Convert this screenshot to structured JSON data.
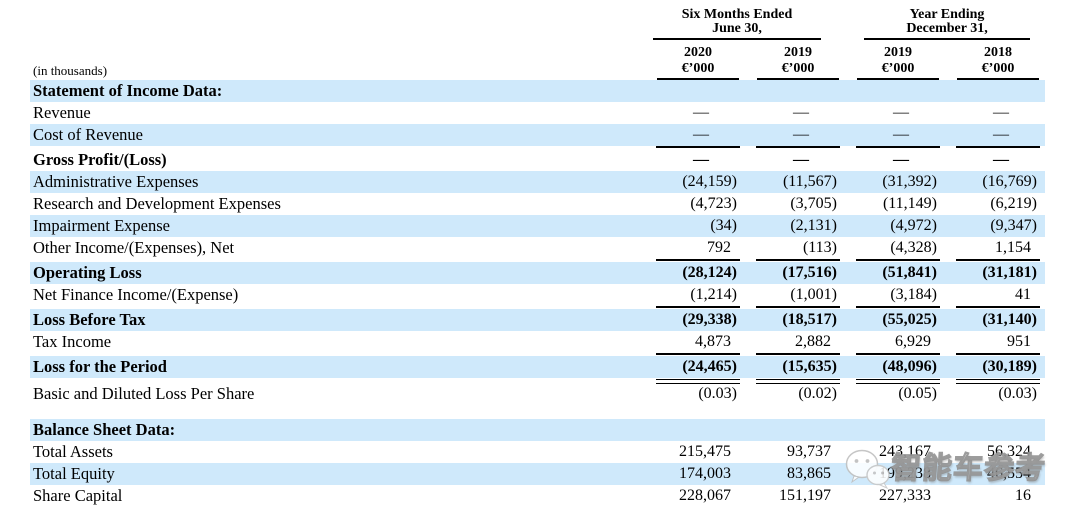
{
  "table": {
    "unit_note": "(in thousands)",
    "col_groups": [
      {
        "title_line1": "Six Months Ended",
        "title_line2": "June 30,",
        "columns": [
          {
            "year": "2020",
            "unit": "€’000"
          },
          {
            "year": "2019",
            "unit": "€’000"
          }
        ]
      },
      {
        "title_line1": "Year Ending",
        "title_line2": "December 31,",
        "columns": [
          {
            "year": "2019",
            "unit": "€’000"
          },
          {
            "year": "2018",
            "unit": "€’000"
          }
        ]
      }
    ],
    "rows": [
      {
        "label": "Statement of Income Data:",
        "values": [
          "",
          "",
          "",
          ""
        ],
        "bold": true,
        "bg": "blue"
      },
      {
        "label": "Revenue",
        "values": [
          "—",
          "—",
          "—",
          "—"
        ],
        "bg": "white"
      },
      {
        "label": "Cost of Revenue",
        "values": [
          "—",
          "—",
          "—",
          "—"
        ],
        "bg": "blue",
        "rule": "single"
      },
      {
        "label": "Gross Profit/(Loss)",
        "values": [
          "—",
          "—",
          "—",
          "—"
        ],
        "bold": true,
        "bg": "white",
        "gap_before": 3
      },
      {
        "label": "Administrative Expenses",
        "values": [
          "(24,159)",
          "(11,567)",
          "(31,392)",
          "(16,769)"
        ],
        "bg": "blue"
      },
      {
        "label": "Research and Development Expenses",
        "values": [
          "(4,723)",
          "(3,705)",
          "(11,149)",
          "(6,219)"
        ],
        "bg": "white"
      },
      {
        "label": "Impairment Expense",
        "values": [
          "(34)",
          "(2,131)",
          "(4,972)",
          "(9,347)"
        ],
        "bg": "blue"
      },
      {
        "label": "Other Income/(Expenses), Net",
        "values": [
          "792",
          "(113)",
          "(4,328)",
          "1,154"
        ],
        "bg": "white",
        "rule": "single"
      },
      {
        "label": "Operating Loss",
        "values": [
          "(28,124)",
          "(17,516)",
          "(51,841)",
          "(31,181)"
        ],
        "bold": true,
        "bg": "blue",
        "gap_before": 3
      },
      {
        "label": "Net Finance Income/(Expense)",
        "values": [
          "(1,214)",
          "(1,001)",
          "(3,184)",
          "41"
        ],
        "bg": "white",
        "rule": "single"
      },
      {
        "label": "Loss Before Tax",
        "values": [
          "(29,338)",
          "(18,517)",
          "(55,025)",
          "(31,140)"
        ],
        "bold": true,
        "bg": "blue",
        "gap_before": 3
      },
      {
        "label": "Tax Income",
        "values": [
          "4,873",
          "2,882",
          "6,929",
          "951"
        ],
        "bg": "white",
        "rule": "single"
      },
      {
        "label": "Loss for the Period",
        "values": [
          "(24,465)",
          "(15,635)",
          "(48,096)",
          "(30,189)"
        ],
        "bold": true,
        "bg": "blue",
        "rule": "double",
        "gap_before": 3
      },
      {
        "label": "Basic and Diluted Loss Per Share",
        "values": [
          "(0.03)",
          "(0.02)",
          "(0.05)",
          "(0.03)"
        ],
        "bg": "white",
        "gap_before": 5
      },
      {
        "label": "Balance Sheet Data:",
        "values": [
          "",
          "",
          "",
          ""
        ],
        "bold": true,
        "bg": "blue",
        "spacer_before": true
      },
      {
        "label": "Total Assets",
        "values": [
          "215,475",
          "93,737",
          "243,167",
          "56,324"
        ],
        "bg": "white"
      },
      {
        "label": "Total Equity",
        "values": [
          "174,003",
          "83,865",
          "199,238",
          "46,554"
        ],
        "bg": "blue"
      },
      {
        "label": "Share Capital",
        "values": [
          "228,067",
          "151,197",
          "227,333",
          "16"
        ],
        "bg": "white"
      }
    ]
  },
  "watermark": {
    "text": "智能车参考",
    "icon": "wechat-icon"
  },
  "colors": {
    "band_blue": "#cfe9fb",
    "rule_black": "#000000",
    "text": "#000000"
  }
}
